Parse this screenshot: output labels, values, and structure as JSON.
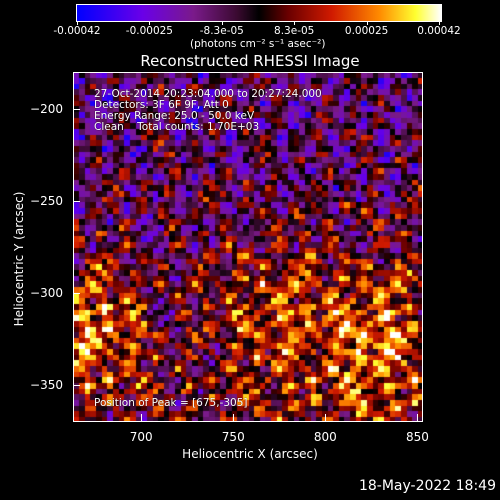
{
  "colorbar": {
    "tick_labels": [
      "-0.00042",
      "-0.00025",
      "-8.3e-05",
      "8.3e-05",
      "0.00025",
      "0.00042"
    ],
    "unit_label": "(photons cm⁻² s⁻¹ asec⁻²)",
    "colors": [
      "#0000ff",
      "#7a1a8a",
      "#000000",
      "#d01a00",
      "#ff8a00",
      "#ffff30",
      "#ffffff"
    ]
  },
  "image": {
    "title": "Reconstructed RHESSI Image",
    "annotations": {
      "time_range": "27-Oct-2014 20:23:04.000 to 20:27:24.000",
      "detectors": "Detectors: 3F 6F 9F, Att 0",
      "energy": "Energy Range: 25.0 - 50.0 keV",
      "clean": "Clean    Total counts: 1.70E+03",
      "peak": "Position of Peak = [675,-305]"
    }
  },
  "chart_data": {
    "type": "heatmap",
    "title": "Reconstructed RHESSI Image",
    "xlabel": "Heliocentric X (arcsec)",
    "ylabel": "Heliocentric Y (arcsec)",
    "xlim": [
      663,
      853
    ],
    "ylim": [
      -370,
      -180
    ],
    "xticks": [
      700,
      750,
      800,
      850
    ],
    "yticks": [
      -200,
      -250,
      -300,
      -350
    ],
    "clim": [
      -0.00042,
      0.00042
    ],
    "peak_position": [
      675,
      -305
    ],
    "colormap": "blue-purple-black-red-yellow-white"
  },
  "footer": {
    "date": "18-May-2022 18:49"
  }
}
